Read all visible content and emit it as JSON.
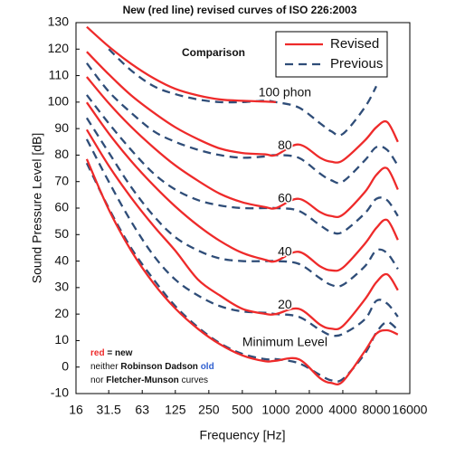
{
  "chart_data": {
    "type": "line",
    "title": "New (red line) revised curves of ISO 226:2003",
    "annotation": "Comparison",
    "x_label": "Frequency [Hz]",
    "y_label": "Sound Pressure Level [dB]",
    "x_scale": "log",
    "xlim": [
      16,
      16000
    ],
    "ylim": [
      -10,
      130
    ],
    "xticks": [
      16,
      31.5,
      63,
      125,
      250,
      500,
      1000,
      2000,
      4000,
      8000,
      16000
    ],
    "yticks": [
      -10,
      0,
      10,
      20,
      30,
      40,
      50,
      60,
      70,
      80,
      90,
      100,
      110,
      120,
      130
    ],
    "grid": false,
    "legend_position": "upper right",
    "x": [
      20,
      31.5,
      50,
      80,
      125,
      200,
      315,
      500,
      800,
      1000,
      1600,
      2500,
      3150,
      4000,
      6300,
      8000,
      10000,
      12500
    ],
    "series": [
      {
        "name": "Revised",
        "color": "#ee2a2a",
        "dashed": false,
        "curves": [
          {
            "label": "100 phon",
            "values": [
              128.4,
              121.0,
              114.5,
              109.0,
              105.0,
              102.5,
              101.0,
              100.5,
              100.2,
              100.0,
              null,
              null,
              null,
              null,
              null,
              null,
              null,
              null
            ]
          },
          {
            "label": "80",
            "values": [
              119.0,
              110.5,
              102.6,
              96.0,
              90.5,
              86.0,
              82.5,
              80.8,
              80.3,
              80.0,
              84.0,
              79.0,
              77.5,
              78.0,
              85.5,
              90.5,
              92.5,
              85.0
            ]
          },
          {
            "label": "60",
            "values": [
              109.5,
              99.6,
              90.7,
              82.8,
              76.1,
              70.3,
              65.4,
              62.2,
              60.4,
              60.0,
              63.5,
              58.5,
              57.0,
              57.5,
              66.0,
              72.5,
              75.0,
              67.0
            ]
          },
          {
            "label": "40",
            "values": [
              99.9,
              88.2,
              77.8,
              68.5,
              60.6,
              53.4,
              47.6,
              43.1,
              40.5,
              40.0,
              43.5,
              38.0,
              36.5,
              37.5,
              46.5,
              52.5,
              55.5,
              48.0
            ]
          },
          {
            "label": "20",
            "values": [
              89.6,
              76.0,
              64.0,
              53.2,
              43.9,
              33.0,
              27.0,
              22.0,
              20.1,
              20.0,
              22.0,
              16.0,
              14.5,
              15.5,
              25.5,
              32.0,
              35.0,
              29.0
            ]
          },
          {
            "label": "Minimum Level",
            "values": [
              78.5,
              59.5,
              44.0,
              31.5,
              22.1,
              14.4,
              8.6,
              4.4,
              2.2,
              2.4,
              3.0,
              -4.2,
              -6.0,
              -5.4,
              6.0,
              12.6,
              13.9,
              12.3
            ]
          }
        ]
      },
      {
        "name": "Previous",
        "color": "#2f4d78",
        "dashed": true,
        "curves": [
          {
            "values": [
              null,
              120,
              112,
              106,
              103,
              101,
              100,
              100,
              100.5,
              100,
              98,
              92,
              89,
              88,
              98,
              106,
              null,
              null
            ]
          },
          {
            "values": [
              114.7,
              104,
              96,
              89,
              85,
              82,
              80,
              79,
              79.5,
              80,
              79,
              73,
              70.5,
              70,
              78,
              83,
              82,
              76
            ]
          },
          {
            "values": [
              102.7,
              92,
              82,
              73,
              67,
              63,
              61,
              60,
              60,
              60,
              59,
              53.5,
              51,
              51,
              58,
              63.5,
              63,
              57
            ]
          },
          {
            "values": [
              94,
              81,
              68,
              57,
              49,
              44,
              41,
              40,
              40,
              40,
              39,
              33.5,
              31,
              31,
              38,
              44,
              43,
              37
            ]
          },
          {
            "values": [
              86,
              70,
              55,
              42,
              33,
              27,
              23,
              21,
              20.5,
              20,
              19,
              14,
              12,
              12.5,
              18,
              25,
              24,
              19
            ]
          },
          {
            "values": [
              77,
              60,
              45,
              33,
              23,
              15,
              9,
              5,
              3,
              3,
              1.5,
              -3,
              -5,
              -4.5,
              5,
              13,
              17,
              14
            ]
          }
        ]
      }
    ],
    "note_lines": [
      [
        {
          "text": "red",
          "color": "#ee2a2a",
          "bold": true
        },
        {
          "text": " = new",
          "bold": true
        }
      ],
      [
        {
          "text": "neither "
        },
        {
          "text": "Robinson Dadson",
          "bold": true
        },
        {
          "text": " "
        },
        {
          "text": "old",
          "color": "#3060d0",
          "bold": true
        }
      ],
      [
        {
          "text": "nor "
        },
        {
          "text": "Fletcher-Munson",
          "bold": true
        },
        {
          "text": " curves"
        }
      ]
    ]
  }
}
